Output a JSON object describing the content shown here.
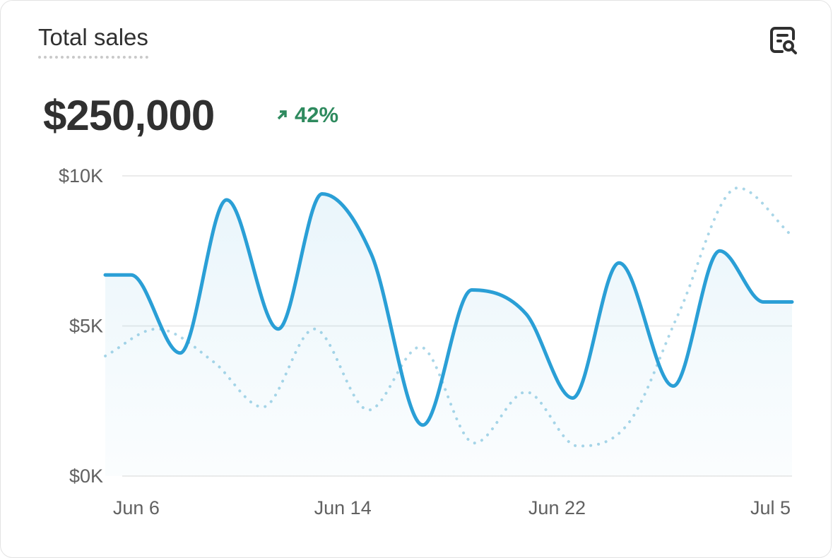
{
  "card": {
    "title": "Total sales",
    "icon": "report-search-icon",
    "total": "$250,000",
    "change": "42%",
    "change_icon": "arrow-up-right-icon",
    "change_color": "#2e8a5e"
  },
  "chart_data": {
    "type": "line",
    "title": "",
    "xlabel": "",
    "ylabel": "",
    "ylim": [
      0,
      10
    ],
    "xlim": [
      0,
      26.6
    ],
    "grid": true,
    "y_ticks": [
      {
        "v": 0,
        "label": "$0K"
      },
      {
        "v": 5,
        "label": "$5K"
      },
      {
        "v": 10,
        "label": "$10K"
      }
    ],
    "x_ticks": [
      {
        "v": 1.2,
        "label": "Jun 6"
      },
      {
        "v": 9.2,
        "label": "Jun 14"
      },
      {
        "v": 17.5,
        "label": "Jun 22"
      },
      {
        "v": 25.5,
        "label": "Jul 5"
      }
    ],
    "series": [
      {
        "style": "solid",
        "color": "#2a9fd6",
        "area": true,
        "points": [
          [
            0,
            6.7
          ],
          [
            1,
            6.7
          ],
          [
            2.9,
            4.1
          ],
          [
            4.7,
            9.2
          ],
          [
            6.7,
            4.9
          ],
          [
            8.4,
            9.4
          ],
          [
            10.3,
            7.4
          ],
          [
            12.3,
            1.7
          ],
          [
            14.2,
            6.2
          ],
          [
            16.3,
            5.4
          ],
          [
            18.1,
            2.6
          ],
          [
            19.9,
            7.1
          ],
          [
            22.0,
            3.0
          ],
          [
            23.8,
            7.5
          ],
          [
            25.5,
            5.8
          ],
          [
            26.6,
            5.8
          ]
        ]
      },
      {
        "style": "dotted",
        "color": "#a9d6e8",
        "area": false,
        "points": [
          [
            0,
            4.0
          ],
          [
            2,
            4.9
          ],
          [
            4.2,
            3.8
          ],
          [
            6.1,
            2.3
          ],
          [
            8.1,
            4.9
          ],
          [
            10.2,
            2.2
          ],
          [
            12.2,
            4.3
          ],
          [
            14.3,
            1.1
          ],
          [
            16.3,
            2.8
          ],
          [
            18.3,
            1.0
          ],
          [
            20.3,
            1.8
          ],
          [
            22.2,
            5.4
          ],
          [
            24.5,
            9.6
          ],
          [
            26.6,
            8.0
          ]
        ]
      }
    ]
  }
}
